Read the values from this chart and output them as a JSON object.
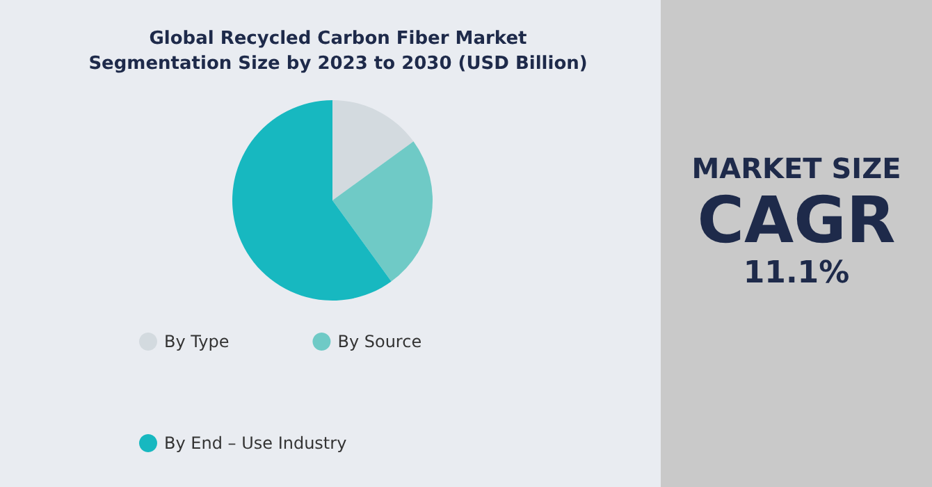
{
  "chart_data": [
    {
      "type": "pie",
      "title": "Global Recycled Carbon Fiber Market\nSegmentation Size by 2023 to 2030 (USD Billion)",
      "categories": [
        "By Type",
        "By Source",
        "By End – Use Industry"
      ],
      "values": [
        15,
        25,
        60
      ],
      "colors": [
        "#d3dadf",
        "#6fcac6",
        "#17b8c0"
      ],
      "legend": "bottom"
    },
    {
      "type": "other",
      "annotations": [
        "MARKET SIZE",
        "CAGR",
        "11.1%"
      ]
    }
  ]
}
